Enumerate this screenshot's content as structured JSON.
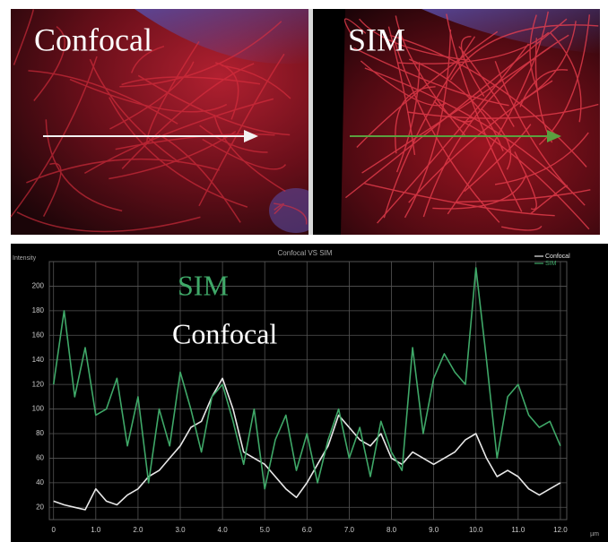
{
  "panels": [
    {
      "label": "Confocal"
    },
    {
      "label": "SIM"
    }
  ],
  "chart_data": {
    "type": "line",
    "title": "Confocal VS SIM",
    "ylabel": "Intensity",
    "xlabel": "µm",
    "annotations": [
      {
        "text": "SIM",
        "color": "#3fa868"
      },
      {
        "text": "Confocal",
        "color": "#ffffff"
      }
    ],
    "x": [
      0,
      0.25,
      0.5,
      0.75,
      1,
      1.25,
      1.5,
      1.75,
      2,
      2.25,
      2.5,
      2.75,
      3,
      3.25,
      3.5,
      3.75,
      4,
      4.25,
      4.5,
      4.75,
      5,
      5.25,
      5.5,
      5.75,
      6,
      6.25,
      6.5,
      6.75,
      7,
      7.25,
      7.5,
      7.75,
      8,
      8.25,
      8.5,
      8.75,
      9,
      9.25,
      9.5,
      9.75,
      10,
      10.25,
      10.5,
      10.75,
      11,
      11.25,
      11.5,
      11.75,
      12
    ],
    "series": [
      {
        "name": "Confocal",
        "color": "#e8e8e8",
        "values": [
          25,
          22,
          20,
          18,
          35,
          25,
          22,
          30,
          35,
          45,
          50,
          60,
          70,
          85,
          90,
          110,
          125,
          100,
          65,
          60,
          55,
          45,
          35,
          28,
          40,
          55,
          70,
          95,
          85,
          75,
          70,
          80,
          60,
          55,
          65,
          60,
          55,
          60,
          65,
          75,
          80,
          60,
          45,
          50,
          45,
          35,
          30,
          35,
          40
        ]
      },
      {
        "name": "SIM",
        "color": "#3fa868",
        "values": [
          120,
          180,
          110,
          150,
          95,
          100,
          125,
          70,
          110,
          40,
          100,
          70,
          130,
          100,
          65,
          110,
          120,
          90,
          55,
          100,
          35,
          75,
          95,
          50,
          80,
          40,
          75,
          100,
          60,
          85,
          45,
          90,
          65,
          50,
          150,
          80,
          125,
          145,
          130,
          120,
          215,
          140,
          60,
          110,
          120,
          95,
          85,
          90,
          70
        ]
      }
    ],
    "xlim": [
      -0.1,
      12.15
    ],
    "ylim": [
      10,
      220
    ],
    "xticks": [
      0,
      {
        "value": 1,
        "label": "1.0"
      },
      {
        "value": 2,
        "label": "2.0"
      },
      {
        "value": 3,
        "label": "3.0"
      },
      {
        "value": 4,
        "label": "4.0"
      },
      {
        "value": 5,
        "label": "5.0"
      },
      {
        "value": 6,
        "label": "6.0"
      },
      {
        "value": 7,
        "label": "7.0"
      },
      {
        "value": 8,
        "label": "8.0"
      },
      {
        "value": 9,
        "label": "9.0"
      },
      {
        "value": 10,
        "label": "10.0"
      },
      {
        "value": 11,
        "label": "11.0"
      },
      {
        "value": 12,
        "label": "12.0"
      }
    ],
    "yticks": [
      20,
      40,
      60,
      80,
      100,
      120,
      140,
      160,
      180,
      200
    ],
    "grid": true
  }
}
